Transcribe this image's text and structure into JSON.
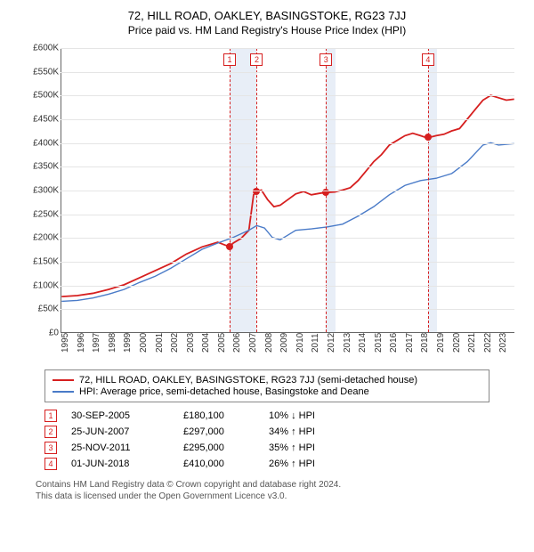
{
  "title": "72, HILL ROAD, OAKLEY, BASINGSTOKE, RG23 7JJ",
  "subtitle": "Price paid vs. HM Land Registry's House Price Index (HPI)",
  "chart": {
    "type": "line",
    "ylim": [
      0,
      600000
    ],
    "ytick_step": 50000,
    "yticks": [
      "£0",
      "£50K",
      "£100K",
      "£150K",
      "£200K",
      "£250K",
      "£300K",
      "£350K",
      "£400K",
      "£450K",
      "£500K",
      "£550K",
      "£600K"
    ],
    "x_start_year": 1995,
    "x_end_year": 2024,
    "xticks": [
      1995,
      1996,
      1997,
      1998,
      1999,
      2000,
      2001,
      2002,
      2003,
      2004,
      2005,
      2006,
      2007,
      2008,
      2009,
      2010,
      2011,
      2012,
      2013,
      2014,
      2015,
      2016,
      2017,
      2018,
      2019,
      2020,
      2021,
      2022,
      2023
    ],
    "grid_color": "#e5e5e5",
    "background_color": "#ffffff",
    "band_color": "#e8eef7",
    "bands": [
      {
        "start": 2005.75,
        "end": 2007.48
      },
      {
        "start": 2011.9,
        "end": 2012.5
      },
      {
        "start": 2018.42,
        "end": 2019.0
      }
    ],
    "series": [
      {
        "name": "property",
        "label": "72, HILL ROAD, OAKLEY, BASINGSTOKE, RG23 7JJ (semi-detached house)",
        "color": "#d61f1f",
        "line_width": 1.8,
        "points": [
          [
            1995.0,
            75000
          ],
          [
            1996.0,
            77000
          ],
          [
            1997.0,
            82000
          ],
          [
            1998.0,
            90000
          ],
          [
            1999.0,
            100000
          ],
          [
            2000.0,
            115000
          ],
          [
            2001.0,
            130000
          ],
          [
            2002.0,
            145000
          ],
          [
            2003.0,
            165000
          ],
          [
            2004.0,
            180000
          ],
          [
            2005.0,
            190000
          ],
          [
            2005.75,
            180100
          ],
          [
            2006.0,
            188000
          ],
          [
            2006.5,
            198000
          ],
          [
            2007.0,
            215000
          ],
          [
            2007.3,
            290000
          ],
          [
            2007.48,
            297000
          ],
          [
            2007.8,
            300000
          ],
          [
            2008.2,
            280000
          ],
          [
            2008.6,
            265000
          ],
          [
            2009.0,
            268000
          ],
          [
            2009.5,
            280000
          ],
          [
            2010.0,
            292000
          ],
          [
            2010.5,
            297000
          ],
          [
            2011.0,
            290000
          ],
          [
            2011.5,
            293000
          ],
          [
            2011.9,
            295000
          ],
          [
            2012.5,
            296000
          ],
          [
            2013.0,
            300000
          ],
          [
            2013.5,
            305000
          ],
          [
            2014.0,
            320000
          ],
          [
            2014.5,
            340000
          ],
          [
            2015.0,
            360000
          ],
          [
            2015.5,
            375000
          ],
          [
            2016.0,
            395000
          ],
          [
            2016.5,
            405000
          ],
          [
            2017.0,
            415000
          ],
          [
            2017.5,
            420000
          ],
          [
            2018.0,
            415000
          ],
          [
            2018.42,
            410000
          ],
          [
            2019.0,
            415000
          ],
          [
            2019.5,
            418000
          ],
          [
            2020.0,
            425000
          ],
          [
            2020.5,
            430000
          ],
          [
            2021.0,
            450000
          ],
          [
            2021.5,
            470000
          ],
          [
            2022.0,
            490000
          ],
          [
            2022.5,
            500000
          ],
          [
            2023.0,
            495000
          ],
          [
            2023.5,
            490000
          ],
          [
            2024.0,
            492000
          ]
        ]
      },
      {
        "name": "hpi",
        "label": "HPI: Average price, semi-detached house, Basingstoke and Deane",
        "color": "#4a7bc8",
        "line_width": 1.4,
        "points": [
          [
            1995.0,
            65000
          ],
          [
            1996.0,
            67000
          ],
          [
            1997.0,
            72000
          ],
          [
            1998.0,
            80000
          ],
          [
            1999.0,
            90000
          ],
          [
            2000.0,
            105000
          ],
          [
            2001.0,
            118000
          ],
          [
            2002.0,
            135000
          ],
          [
            2003.0,
            155000
          ],
          [
            2004.0,
            175000
          ],
          [
            2005.0,
            188000
          ],
          [
            2006.0,
            200000
          ],
          [
            2007.0,
            215000
          ],
          [
            2007.5,
            225000
          ],
          [
            2008.0,
            220000
          ],
          [
            2008.5,
            200000
          ],
          [
            2009.0,
            195000
          ],
          [
            2009.5,
            205000
          ],
          [
            2010.0,
            215000
          ],
          [
            2011.0,
            218000
          ],
          [
            2012.0,
            222000
          ],
          [
            2013.0,
            228000
          ],
          [
            2014.0,
            245000
          ],
          [
            2015.0,
            265000
          ],
          [
            2016.0,
            290000
          ],
          [
            2017.0,
            310000
          ],
          [
            2018.0,
            320000
          ],
          [
            2019.0,
            325000
          ],
          [
            2020.0,
            335000
          ],
          [
            2021.0,
            360000
          ],
          [
            2022.0,
            395000
          ],
          [
            2022.5,
            400000
          ],
          [
            2023.0,
            395000
          ],
          [
            2024.0,
            398000
          ]
        ]
      }
    ],
    "sale_markers": [
      {
        "num": "1",
        "year": 2005.75,
        "price": 180100,
        "color": "#d61f1f"
      },
      {
        "num": "2",
        "year": 2007.48,
        "price": 297000,
        "color": "#d61f1f"
      },
      {
        "num": "3",
        "year": 2011.9,
        "price": 295000,
        "color": "#d61f1f"
      },
      {
        "num": "4",
        "year": 2018.42,
        "price": 410000,
        "color": "#d61f1f"
      }
    ]
  },
  "legend": {
    "series1": "72, HILL ROAD, OAKLEY, BASINGSTOKE, RG23 7JJ (semi-detached house)",
    "series2": "HPI: Average price, semi-detached house, Basingstoke and Deane",
    "color1": "#d61f1f",
    "color2": "#4a7bc8"
  },
  "sales": [
    {
      "num": "1",
      "date": "30-SEP-2005",
      "price": "£180,100",
      "pct": "10% ↓ HPI",
      "color": "#d61f1f"
    },
    {
      "num": "2",
      "date": "25-JUN-2007",
      "price": "£297,000",
      "pct": "34% ↑ HPI",
      "color": "#d61f1f"
    },
    {
      "num": "3",
      "date": "25-NOV-2011",
      "price": "£295,000",
      "pct": "35% ↑ HPI",
      "color": "#d61f1f"
    },
    {
      "num": "4",
      "date": "01-JUN-2018",
      "price": "£410,000",
      "pct": "26% ↑ HPI",
      "color": "#d61f1f"
    }
  ],
  "footer1": "Contains HM Land Registry data © Crown copyright and database right 2024.",
  "footer2": "This data is licensed under the Open Government Licence v3.0."
}
